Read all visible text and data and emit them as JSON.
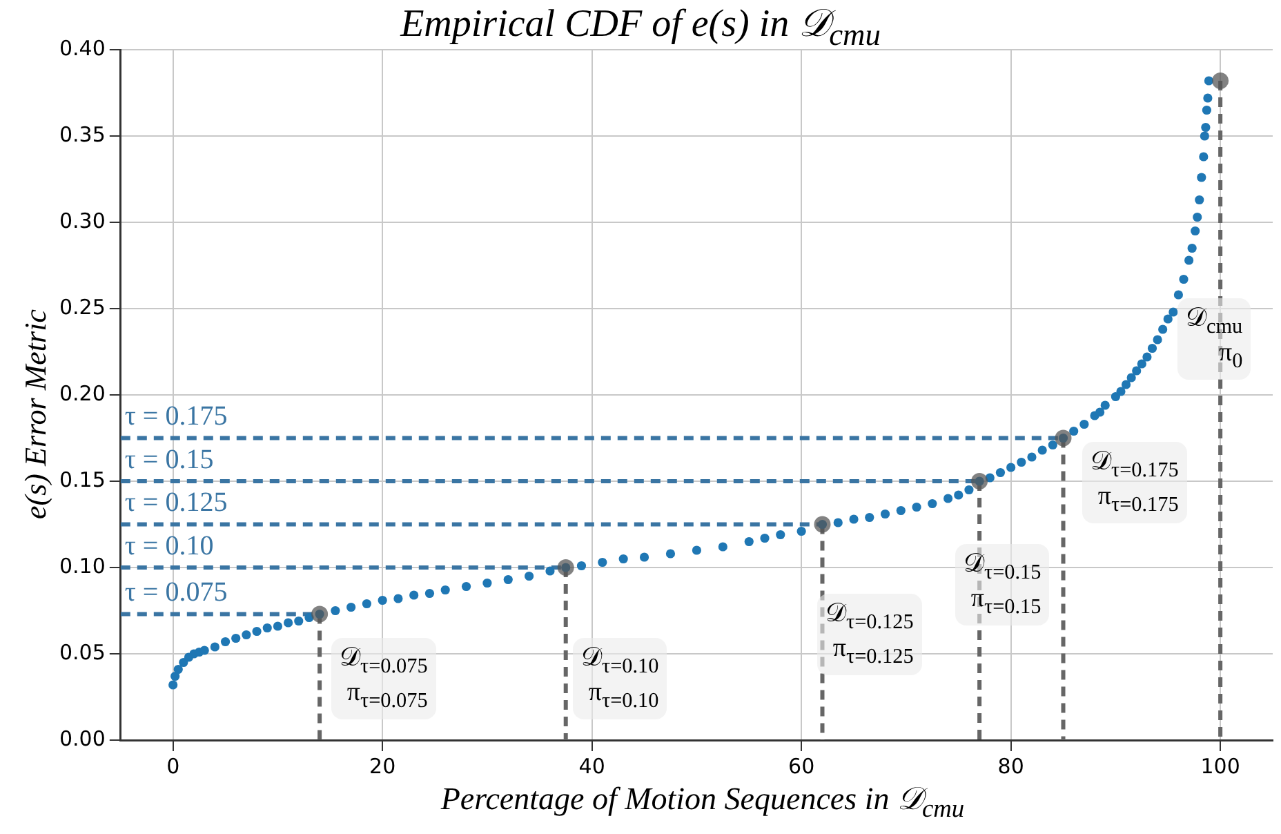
{
  "chart_data": {
    "type": "scatter",
    "title": "Empirical CDF of e(s) in 𝒟$_{cmu}$",
    "xlabel": "Percentage of Motion Sequences in 𝒟$_{cmu}$",
    "ylabel": "e(s)  Error Metric",
    "xlim": [
      -5,
      105
    ],
    "xticks": [
      0,
      20,
      40,
      60,
      80,
      100
    ],
    "ylim": [
      0,
      0.4
    ],
    "yticks": [
      {
        "value": 0,
        "label": "0.00"
      },
      {
        "value": 0.05,
        "label": "0.05"
      },
      {
        "value": 0.1,
        "label": "0.10"
      },
      {
        "value": 0.15,
        "label": "0.15"
      },
      {
        "value": 0.2,
        "label": "0.20"
      },
      {
        "value": 0.25,
        "label": "0.25"
      },
      {
        "value": 0.3,
        "label": "0.30"
      },
      {
        "value": 0.35,
        "label": "0.35"
      },
      {
        "value": 0.4,
        "label": "0.40"
      }
    ],
    "grid": true,
    "legend": false,
    "marker": "circle",
    "series": [
      {
        "color": "#1f77b4",
        "x": [
          0,
          0.2,
          0.5,
          1,
          1.5,
          2,
          2.5,
          3,
          4,
          5,
          6,
          7,
          8,
          9,
          10,
          11,
          12,
          13,
          14,
          15.5,
          17,
          18.5,
          20,
          21.5,
          23,
          24.5,
          26,
          28,
          30,
          32,
          34,
          36,
          37.5,
          39,
          41,
          43,
          45,
          47.5,
          50,
          52.5,
          55,
          56.5,
          58,
          60,
          62,
          63.5,
          65,
          66.5,
          68,
          69.5,
          71,
          72.5,
          74,
          75,
          76,
          77,
          78,
          79,
          80,
          81,
          82,
          83,
          84,
          85,
          86,
          87,
          88,
          88.5,
          89,
          90,
          90.5,
          91,
          91.5,
          92,
          92.5,
          93,
          93.5,
          94,
          94.5,
          95,
          95.5,
          96,
          96.5,
          97,
          97.3,
          97.6,
          97.8,
          98,
          98.2,
          98.4,
          98.5,
          98.6,
          98.7,
          98.8,
          98.9
        ],
        "values": [
          0.032,
          0.037,
          0.041,
          0.045,
          0.048,
          0.05,
          0.051,
          0.052,
          0.054,
          0.057,
          0.059,
          0.061,
          0.063,
          0.065,
          0.066,
          0.068,
          0.069,
          0.071,
          0.073,
          0.075,
          0.077,
          0.079,
          0.081,
          0.082,
          0.084,
          0.085,
          0.087,
          0.089,
          0.091,
          0.093,
          0.095,
          0.098,
          0.1,
          0.101,
          0.103,
          0.105,
          0.106,
          0.108,
          0.11,
          0.112,
          0.115,
          0.117,
          0.119,
          0.121,
          0.125,
          0.126,
          0.128,
          0.129,
          0.131,
          0.133,
          0.135,
          0.137,
          0.14,
          0.142,
          0.145,
          0.15,
          0.152,
          0.155,
          0.158,
          0.161,
          0.164,
          0.168,
          0.171,
          0.175,
          0.179,
          0.183,
          0.188,
          0.19,
          0.194,
          0.199,
          0.202,
          0.206,
          0.21,
          0.214,
          0.218,
          0.222,
          0.227,
          0.232,
          0.238,
          0.244,
          0.248,
          0.258,
          0.267,
          0.278,
          0.285,
          0.295,
          0.303,
          0.313,
          0.326,
          0.338,
          0.35,
          0.355,
          0.365,
          0.372,
          0.382
        ]
      },
      {
        "color": "#555555",
        "x": [
          14,
          37.5,
          62,
          77,
          85,
          100
        ],
        "values": [
          0.073,
          0.1,
          0.125,
          0.15,
          0.175,
          0.382
        ]
      },
      {
        "type": "line",
        "name": "τ = 0.075",
        "color": "#3a75a3",
        "line_style": "dashed",
        "marker": "none",
        "x": [
          -5,
          14
        ],
        "values": [
          0.073,
          0.073
        ]
      },
      {
        "type": "line",
        "name": "τ = 0.10",
        "color": "#3a75a3",
        "line_style": "dashed",
        "marker": "none",
        "x": [
          -5,
          37.5
        ],
        "values": [
          0.1,
          0.1
        ]
      },
      {
        "type": "line",
        "name": "τ = 0.125",
        "color": "#3a75a3",
        "line_style": "dashed",
        "marker": "none",
        "x": [
          -5,
          62
        ],
        "values": [
          0.125,
          0.125
        ]
      },
      {
        "type": "line",
        "name": "τ = 0.15",
        "color": "#3a75a3",
        "line_style": "dashed",
        "marker": "none",
        "x": [
          -5,
          77
        ],
        "values": [
          0.15,
          0.15
        ]
      },
      {
        "type": "line",
        "name": "τ = 0.175",
        "color": "#3a75a3",
        "line_style": "dashed",
        "marker": "none",
        "x": [
          -5,
          85
        ],
        "values": [
          0.175,
          0.175
        ]
      },
      {
        "type": "line",
        "color": "#666666",
        "line_style": "dashed",
        "marker": "none",
        "x": [
          14,
          14
        ],
        "values": [
          0.073,
          0
        ]
      },
      {
        "type": "line",
        "color": "#666666",
        "line_style": "dashed",
        "marker": "none",
        "x": [
          37.5,
          37.5
        ],
        "values": [
          0.1,
          0
        ]
      },
      {
        "type": "line",
        "color": "#666666",
        "line_style": "dashed",
        "marker": "none",
        "x": [
          62,
          62
        ],
        "values": [
          0.125,
          0
        ]
      },
      {
        "type": "line",
        "color": "#666666",
        "line_style": "dashed",
        "marker": "none",
        "x": [
          77,
          77
        ],
        "values": [
          0.15,
          0
        ]
      },
      {
        "type": "line",
        "color": "#666666",
        "line_style": "dashed",
        "marker": "none",
        "x": [
          85,
          85
        ],
        "values": [
          0.175,
          0
        ]
      },
      {
        "type": "line",
        "color": "#666666",
        "line_style": "dashed",
        "marker": "none",
        "x": [
          100,
          100
        ],
        "values": [
          0.382,
          0
        ]
      }
    ],
    "annotations": [
      "𝒟$_{τ=0.075}$\nπ$_{τ=0.075}$",
      "𝒟$_{τ=0.10}$\nπ$_{τ=0.10}$",
      "𝒟$_{τ=0.125}$\nπ$_{τ=0.125}$",
      "𝒟$_{τ=0.15}$\nπ$_{τ=0.15}$",
      "𝒟$_{τ=0.175}$\nπ$_{τ=0.175}$",
      "𝒟$_{cmu}$\nπ$_{0}$"
    ]
  }
}
